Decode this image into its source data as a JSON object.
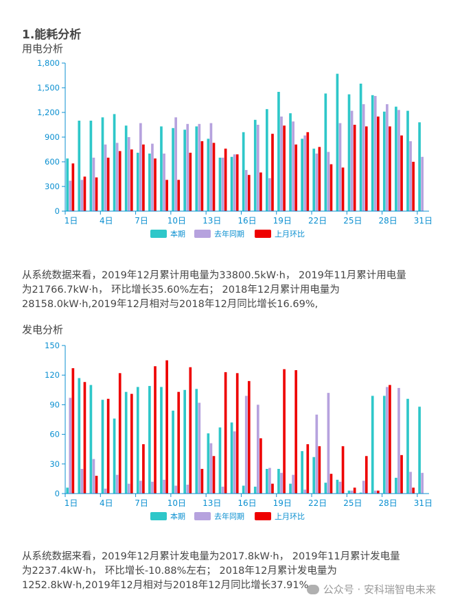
{
  "section_title": "1.能耗分析",
  "colors": {
    "current": "#2ec7c9",
    "last_year": "#b6a2de",
    "last_month": "#ee0000",
    "axis": "#0a8fd0"
  },
  "chart_data": [
    {
      "type": "bar",
      "title": "用电分析",
      "categories": [
        "1日",
        "2日",
        "3日",
        "4日",
        "5日",
        "6日",
        "7日",
        "8日",
        "9日",
        "10日",
        "11日",
        "12日",
        "13日",
        "14日",
        "15日",
        "16日",
        "17日",
        "18日",
        "19日",
        "20日",
        "21日",
        "22日",
        "23日",
        "24日",
        "25日",
        "26日",
        "27日",
        "28日",
        "29日",
        "30日",
        "31日"
      ],
      "x_tick_labels": [
        "1日",
        "4日",
        "7日",
        "10日",
        "13日",
        "16日",
        "19日",
        "22日",
        "25日",
        "28日",
        "31日"
      ],
      "ylim": [
        0,
        1800
      ],
      "y_ticks": [
        "0",
        "300",
        "600",
        "900",
        "1,200",
        "1,500",
        "1,800"
      ],
      "legend": [
        "本期",
        "去年同期",
        "上月环比"
      ],
      "series": [
        {
          "name": "本期",
          "values": [
            640,
            1100,
            1100,
            1140,
            1180,
            1040,
            710,
            700,
            1030,
            1010,
            990,
            1030,
            880,
            650,
            660,
            960,
            1110,
            1240,
            1450,
            1190,
            880,
            760,
            1430,
            1670,
            1420,
            1550,
            1410,
            1210,
            1270,
            1220,
            1080
          ]
        },
        {
          "name": "去年同期",
          "values": [
            370,
            380,
            650,
            810,
            830,
            900,
            1070,
            820,
            700,
            1140,
            1060,
            1060,
            1070,
            650,
            690,
            500,
            1050,
            400,
            1150,
            1090,
            920,
            700,
            720,
            1070,
            1220,
            1300,
            1400,
            1300,
            1230,
            850,
            660
          ]
        },
        {
          "name": "上月环比",
          "values": [
            580,
            420,
            410,
            650,
            730,
            750,
            810,
            640,
            380,
            380,
            710,
            850,
            830,
            760,
            690,
            440,
            470,
            940,
            1040,
            810,
            960,
            780,
            570,
            530,
            1050,
            1030,
            1150,
            1030,
            920,
            600,
            null
          ]
        }
      ]
    },
    {
      "type": "bar",
      "title": "发电分析",
      "categories": [
        "1日",
        "2日",
        "3日",
        "4日",
        "5日",
        "6日",
        "7日",
        "8日",
        "9日",
        "10日",
        "11日",
        "12日",
        "13日",
        "14日",
        "15日",
        "16日",
        "17日",
        "18日",
        "19日",
        "20日",
        "21日",
        "22日",
        "23日",
        "24日",
        "25日",
        "26日",
        "27日",
        "28日",
        "29日",
        "30日",
        "31日"
      ],
      "x_tick_labels": [
        "1日",
        "4日",
        "7日",
        "10日",
        "13日",
        "16日",
        "19日",
        "22日",
        "25日",
        "28日",
        "31日"
      ],
      "ylim": [
        0,
        150
      ],
      "y_ticks": [
        "0",
        "30",
        "60",
        "90",
        "120",
        "150"
      ],
      "legend": [
        "本期",
        "去年同期",
        "上月环比"
      ],
      "series": [
        {
          "name": "本期",
          "values": [
            6,
            117,
            110,
            95,
            76,
            103,
            108,
            109,
            108,
            84,
            105,
            106,
            61,
            67,
            72,
            8,
            7,
            25,
            25,
            10,
            43,
            37,
            11,
            14,
            3,
            1,
            99,
            99,
            16,
            96,
            88
          ]
        },
        {
          "name": "去年同期",
          "values": [
            97,
            25,
            35,
            5,
            19,
            10,
            13,
            12,
            14,
            8,
            9,
            92,
            51,
            7,
            63,
            99,
            90,
            26,
            21,
            19,
            4,
            80,
            102,
            12,
            3,
            13,
            3,
            108,
            107,
            22,
            21
          ]
        },
        {
          "name": "上月环比",
          "values": [
            127,
            113,
            18,
            96,
            122,
            101,
            50,
            129,
            135,
            103,
            128,
            25,
            38,
            123,
            122,
            114,
            56,
            10,
            126,
            125,
            50,
            48,
            20,
            48,
            6,
            38,
            3,
            110,
            39,
            6,
            null
          ]
        }
      ]
    }
  ],
  "paragraph1": [
    "从系统数据来看，2019年12月累计用电量为33800.5kW·h， 2019年11月累计用电量",
    "为21766.7kW·h， 环比增长35.60%左右； 2018年12月累计用电量为",
    "28158.0kW·h,2019年12月相对与2018年12月同比增长16.69%,"
  ],
  "paragraph2": [
    "从系统数据来看，2019年12月累计发电量为2017.8kW·h， 2019年11月累计发电量",
    "为2237.4kW·h， 环比增长-10.88%左右； 2018年12月累计发电量为",
    "1252.8kW·h,2019年12月相对与2018年12月同比增长37.91%"
  ],
  "watermark": "公众号 · 安科瑞智电未来"
}
